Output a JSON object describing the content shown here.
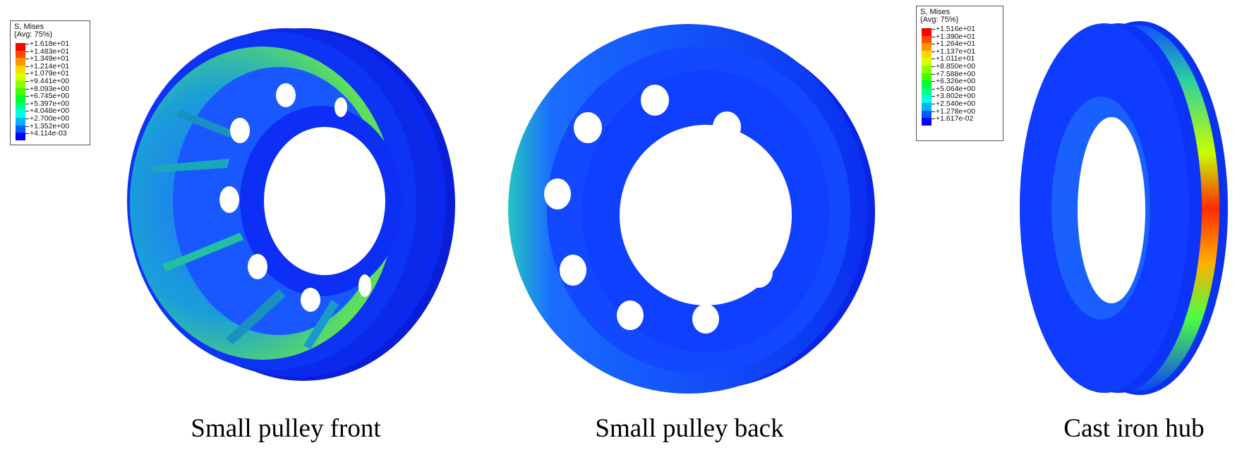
{
  "legend_left": {
    "title_line1": "S, Mises",
    "title_line2": "(Avg: 75%)",
    "values": [
      "+1.618e+01",
      "+1.483e+01",
      "+1.349e+01",
      "+1.214e+01",
      "+1.079e+01",
      "+9.441e+00",
      "+8.093e+00",
      "+6.745e+00",
      "+5.397e+00",
      "+4.048e+00",
      "+2.700e+00",
      "+1.352e+00",
      "+4.114e-03"
    ]
  },
  "legend_right": {
    "title_line1": "S, Mises",
    "title_line2": "(Avg: 75%)",
    "values": [
      "+1.516e+01",
      "+1.390e+01",
      "+1.264e+01",
      "+1.137e+01",
      "+1.011e+01",
      "+8.850e+00",
      "+7.588e+00",
      "+6.326e+00",
      "+5.064e+00",
      "+3.802e+00",
      "+2.540e+00",
      "+1.278e+00",
      "+1.617e-02"
    ]
  },
  "legend_colors": [
    "#ff0000",
    "#ff4a00",
    "#ff9300",
    "#ffd500",
    "#d6ff00",
    "#8cff00",
    "#3fff00",
    "#00ff30",
    "#00ff8e",
    "#00ffe0",
    "#00b4ff",
    "#0058ff",
    "#0000ff"
  ],
  "captions": {
    "front": "Small pulley front",
    "back": "Small pulley back",
    "hub": "Cast iron hub"
  }
}
